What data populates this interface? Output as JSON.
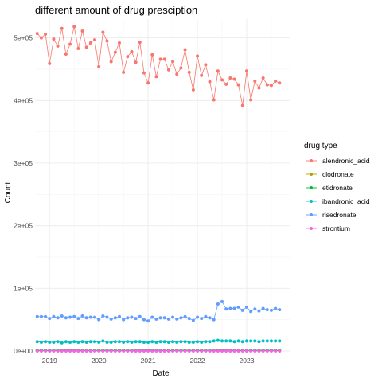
{
  "chart_data": {
    "type": "line",
    "title": "different amount of drug presciption",
    "xlabel": "Date",
    "ylabel": "Count",
    "x_ticks": [
      "2019",
      "2020",
      "2021",
      "2022",
      "2023"
    ],
    "y_ticks": [
      "0e+00",
      "1e+05",
      "2e+05",
      "3e+05",
      "4e+05",
      "5e+05"
    ],
    "ylim": [
      0,
      530000
    ],
    "xlim": [
      "2018-09-15",
      "2023-11-15"
    ],
    "legend_title": "drug type",
    "legend_position": "right",
    "grid": true,
    "x": [
      "2018-10",
      "2018-11",
      "2018-12",
      "2019-01",
      "2019-02",
      "2019-03",
      "2019-04",
      "2019-05",
      "2019-06",
      "2019-07",
      "2019-08",
      "2019-09",
      "2019-10",
      "2019-11",
      "2019-12",
      "2020-01",
      "2020-02",
      "2020-03",
      "2020-04",
      "2020-05",
      "2020-06",
      "2020-07",
      "2020-08",
      "2020-09",
      "2020-10",
      "2020-11",
      "2020-12",
      "2021-01",
      "2021-02",
      "2021-03",
      "2021-04",
      "2021-05",
      "2021-06",
      "2021-07",
      "2021-08",
      "2021-09",
      "2021-10",
      "2021-11",
      "2021-12",
      "2022-01",
      "2022-02",
      "2022-03",
      "2022-04",
      "2022-05",
      "2022-06",
      "2022-07",
      "2022-08",
      "2022-09",
      "2022-10",
      "2022-11",
      "2022-12",
      "2023-01",
      "2023-02",
      "2023-03",
      "2023-04",
      "2023-05",
      "2023-06",
      "2023-07",
      "2023-08",
      "2023-09"
    ],
    "series": [
      {
        "name": "alendronic_acid",
        "color": "#F8766D",
        "values": [
          507000,
          500000,
          506000,
          459000,
          498000,
          487000,
          515000,
          474000,
          490000,
          518000,
          483000,
          511000,
          485000,
          492000,
          497000,
          454000,
          509000,
          495000,
          462000,
          477000,
          492000,
          445000,
          470000,
          478000,
          461000,
          493000,
          444000,
          428000,
          473000,
          438000,
          466000,
          466000,
          449000,
          462000,
          442000,
          452000,
          481000,
          445000,
          417000,
          471000,
          440000,
          457000,
          430000,
          401000,
          447000,
          433000,
          426000,
          436000,
          434000,
          425000,
          392000,
          447000,
          401000,
          431000,
          420000,
          436000,
          425000,
          424000,
          431000,
          428000
        ]
      },
      {
        "name": "clodronate",
        "color": "#B79F00",
        "values": [
          800,
          800,
          800,
          800,
          800,
          800,
          800,
          800,
          800,
          800,
          800,
          800,
          800,
          800,
          800,
          800,
          800,
          800,
          800,
          800,
          800,
          800,
          800,
          800,
          800,
          800,
          800,
          800,
          800,
          800,
          800,
          800,
          800,
          800,
          800,
          800,
          800,
          800,
          800,
          800,
          800,
          800,
          800,
          800,
          800,
          800,
          800,
          800,
          800,
          800,
          800,
          800,
          800,
          800,
          800,
          800,
          800,
          800,
          800,
          800
        ]
      },
      {
        "name": "etidronate",
        "color": "#00BA38",
        "values": [
          1000,
          1000,
          1000,
          1000,
          1000,
          1000,
          1000,
          1000,
          1000,
          1000,
          1000,
          1000,
          1000,
          1000,
          1000,
          1000,
          1000,
          1000,
          1000,
          1000,
          1000,
          1000,
          1000,
          1000,
          1000,
          1000,
          1000,
          1000,
          1000,
          1000,
          1000,
          1000,
          1000,
          1000,
          1000,
          1000,
          1000,
          1000,
          1000,
          1000,
          1000,
          1000,
          1000,
          1000,
          1000,
          1000,
          1000,
          1000,
          1000,
          1000,
          1000,
          1000,
          1000,
          1000,
          1000,
          1000,
          1000,
          1000,
          1000,
          1000
        ]
      },
      {
        "name": "ibandronic_acid",
        "color": "#00BFC4",
        "values": [
          15000,
          14000,
          15000,
          14000,
          14000,
          15000,
          13000,
          15000,
          14000,
          15000,
          14000,
          15000,
          14000,
          15000,
          15000,
          14000,
          16000,
          14000,
          14000,
          15000,
          15000,
          14000,
          15000,
          14000,
          15000,
          15000,
          14000,
          14000,
          15000,
          14000,
          15000,
          15000,
          14000,
          15000,
          14000,
          15000,
          15000,
          14000,
          14000,
          15000,
          14000,
          15000,
          15000,
          16000,
          17000,
          16000,
          16000,
          16000,
          15000,
          16000,
          15000,
          16000,
          16000,
          16000,
          15000,
          16000,
          16000,
          16000,
          16000,
          16000
        ]
      },
      {
        "name": "risedronate",
        "color": "#619CFF",
        "values": [
          55000,
          55000,
          55000,
          52000,
          55000,
          53000,
          56000,
          53000,
          54000,
          55000,
          52000,
          56000,
          53000,
          54000,
          54000,
          50000,
          56000,
          54000,
          51000,
          53000,
          55000,
          50000,
          53000,
          54000,
          52000,
          55000,
          50000,
          48000,
          54000,
          51000,
          53000,
          53000,
          51000,
          54000,
          51000,
          53000,
          55000,
          52000,
          49000,
          54000,
          52000,
          55000,
          53000,
          50000,
          75000,
          79000,
          67000,
          68000,
          68000,
          70000,
          65000,
          70000,
          63000,
          67000,
          64000,
          68000,
          66000,
          65000,
          68000,
          66000
        ]
      },
      {
        "name": "strontium",
        "color": "#F564E3",
        "values": [
          0,
          0,
          0,
          0,
          0,
          0,
          0,
          0,
          0,
          0,
          0,
          0,
          0,
          0,
          0,
          0,
          0,
          0,
          0,
          0,
          0,
          0,
          0,
          0,
          0,
          0,
          0,
          0,
          0,
          0,
          0,
          0,
          0,
          0,
          0,
          0,
          0,
          0,
          0,
          0,
          0,
          0,
          0,
          0,
          0,
          0,
          0,
          0,
          0,
          0,
          0,
          0,
          0,
          0,
          0,
          0,
          0,
          0,
          0,
          0
        ]
      }
    ]
  }
}
